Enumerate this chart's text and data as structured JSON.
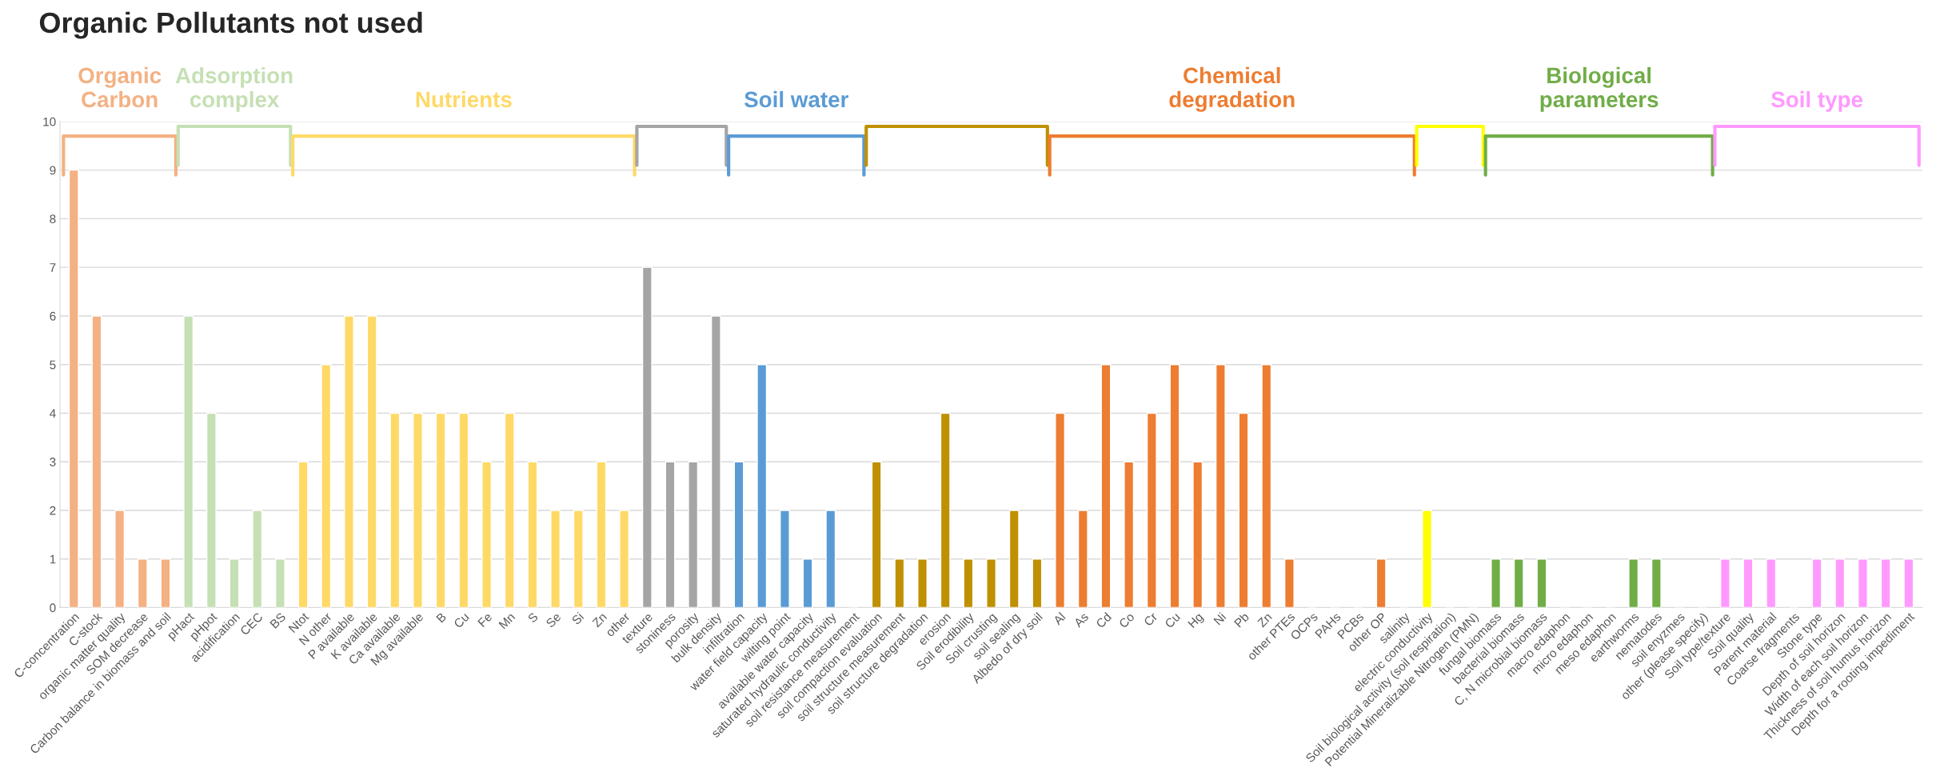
{
  "chart_data": {
    "type": "bar",
    "title": "Organic Pollutants not used",
    "categories": [
      "C-concentration",
      "C-stock",
      "organic matter quality",
      "SOM decrease",
      "Carbon balance in biomass and soil",
      "pHact",
      "pHpot",
      "acidification",
      "CEC",
      "BS",
      "Ntot",
      "N other",
      "P available",
      "K available",
      "Ca available",
      "Mg available",
      "B",
      "Cu",
      "Fe",
      "Mn",
      "S",
      "Se",
      "Si",
      "Zn",
      "other",
      "texture",
      "stoniness",
      "porosity",
      "bulk density",
      "infiltration",
      "water field capacity",
      "wilting point",
      "available water capacity",
      "saturated hydraulic conductivity",
      "soil resistance measurement",
      "soil compaction evaluation",
      "soil structure measurement",
      "soil structure degradation",
      "erosion",
      "Soil erodibility",
      "Soil crusting",
      "soil sealing",
      "Albedo of dry soil",
      "Al",
      "As",
      "Cd",
      "Co",
      "Cr",
      "Cu",
      "Hg",
      "Ni",
      "Pb",
      "Zn",
      "other PTEs",
      "OCPs",
      "PAHs",
      "PCBs",
      "other OP",
      "salinity",
      "electric conductivity",
      "Soil biological activity (soil respiration)",
      "Potential Mineralizable Nitrogen (PMN)",
      "fungal biomass",
      "bacterial biomass",
      "C, N microbial biomass",
      "macro edaphon",
      "micro edaphon",
      "meso edaphon",
      "earthworms",
      "nematodes",
      "soil enyzmes",
      "other (please specify)",
      "Soil type/texture",
      "Soil quality",
      "Parent material",
      "Coarse fragments",
      "Stone type",
      "Depth of soil horizon",
      "Width of each soil horizon",
      "Thickness of soil humus horizon",
      "Depth for a rooting impediment"
    ],
    "values": [
      9,
      6,
      2,
      1,
      1,
      6,
      4,
      1,
      2,
      1,
      3,
      5,
      6,
      6,
      4,
      4,
      4,
      4,
      3,
      4,
      3,
      2,
      2,
      3,
      2,
      7,
      3,
      3,
      6,
      3,
      5,
      2,
      1,
      2,
      0,
      3,
      1,
      1,
      4,
      1,
      1,
      2,
      1,
      4,
      2,
      5,
      3,
      4,
      5,
      3,
      5,
      4,
      5,
      1,
      0,
      0,
      0,
      1,
      0,
      2,
      0,
      0,
      1,
      1,
      1,
      0,
      0,
      0,
      1,
      1,
      0,
      0,
      1,
      1,
      1,
      0,
      1,
      1,
      1,
      1,
      1
    ],
    "colors": [
      "#f4b183",
      "#f4b183",
      "#f4b183",
      "#f4b183",
      "#f4b183",
      "#c5e0b4",
      "#c5e0b4",
      "#c5e0b4",
      "#c5e0b4",
      "#c5e0b4",
      "#ffd966",
      "#ffd966",
      "#ffd966",
      "#ffd966",
      "#ffd966",
      "#ffd966",
      "#ffd966",
      "#ffd966",
      "#ffd966",
      "#ffd966",
      "#ffd966",
      "#ffd966",
      "#ffd966",
      "#ffd966",
      "#ffd966",
      "#a5a5a5",
      "#a5a5a5",
      "#a5a5a5",
      "#a5a5a5",
      "#5b9bd5",
      "#5b9bd5",
      "#5b9bd5",
      "#5b9bd5",
      "#5b9bd5",
      null,
      "#bf9000",
      "#bf9000",
      "#bf9000",
      "#bf9000",
      "#bf9000",
      "#bf9000",
      "#bf9000",
      "#bf9000",
      "#ed7d31",
      "#ed7d31",
      "#ed7d31",
      "#ed7d31",
      "#ed7d31",
      "#ed7d31",
      "#ed7d31",
      "#ed7d31",
      "#ed7d31",
      "#ed7d31",
      "#ed7d31",
      null,
      null,
      null,
      "#ed7d31",
      null,
      "#ffff00",
      null,
      null,
      "#70ad47",
      "#70ad47",
      "#70ad47",
      null,
      null,
      null,
      "#70ad47",
      "#70ad47",
      null,
      null,
      "#ff99ff",
      "#ff99ff",
      "#ff99ff",
      null,
      "#ff99ff",
      "#ff99ff",
      "#ff99ff",
      "#ff99ff",
      "#ff99ff"
    ],
    "ylim": [
      0,
      10
    ],
    "yticks": [
      0,
      1,
      2,
      3,
      4,
      5,
      6,
      7,
      8,
      9,
      10
    ],
    "grid": "y",
    "annotations": [
      "Organic\nCarbon",
      "Adsorption\ncomplex",
      "Nutrients",
      "Soil water",
      "Chemical\ndegradation",
      "Biological\nparameters",
      "Soil type"
    ]
  }
}
